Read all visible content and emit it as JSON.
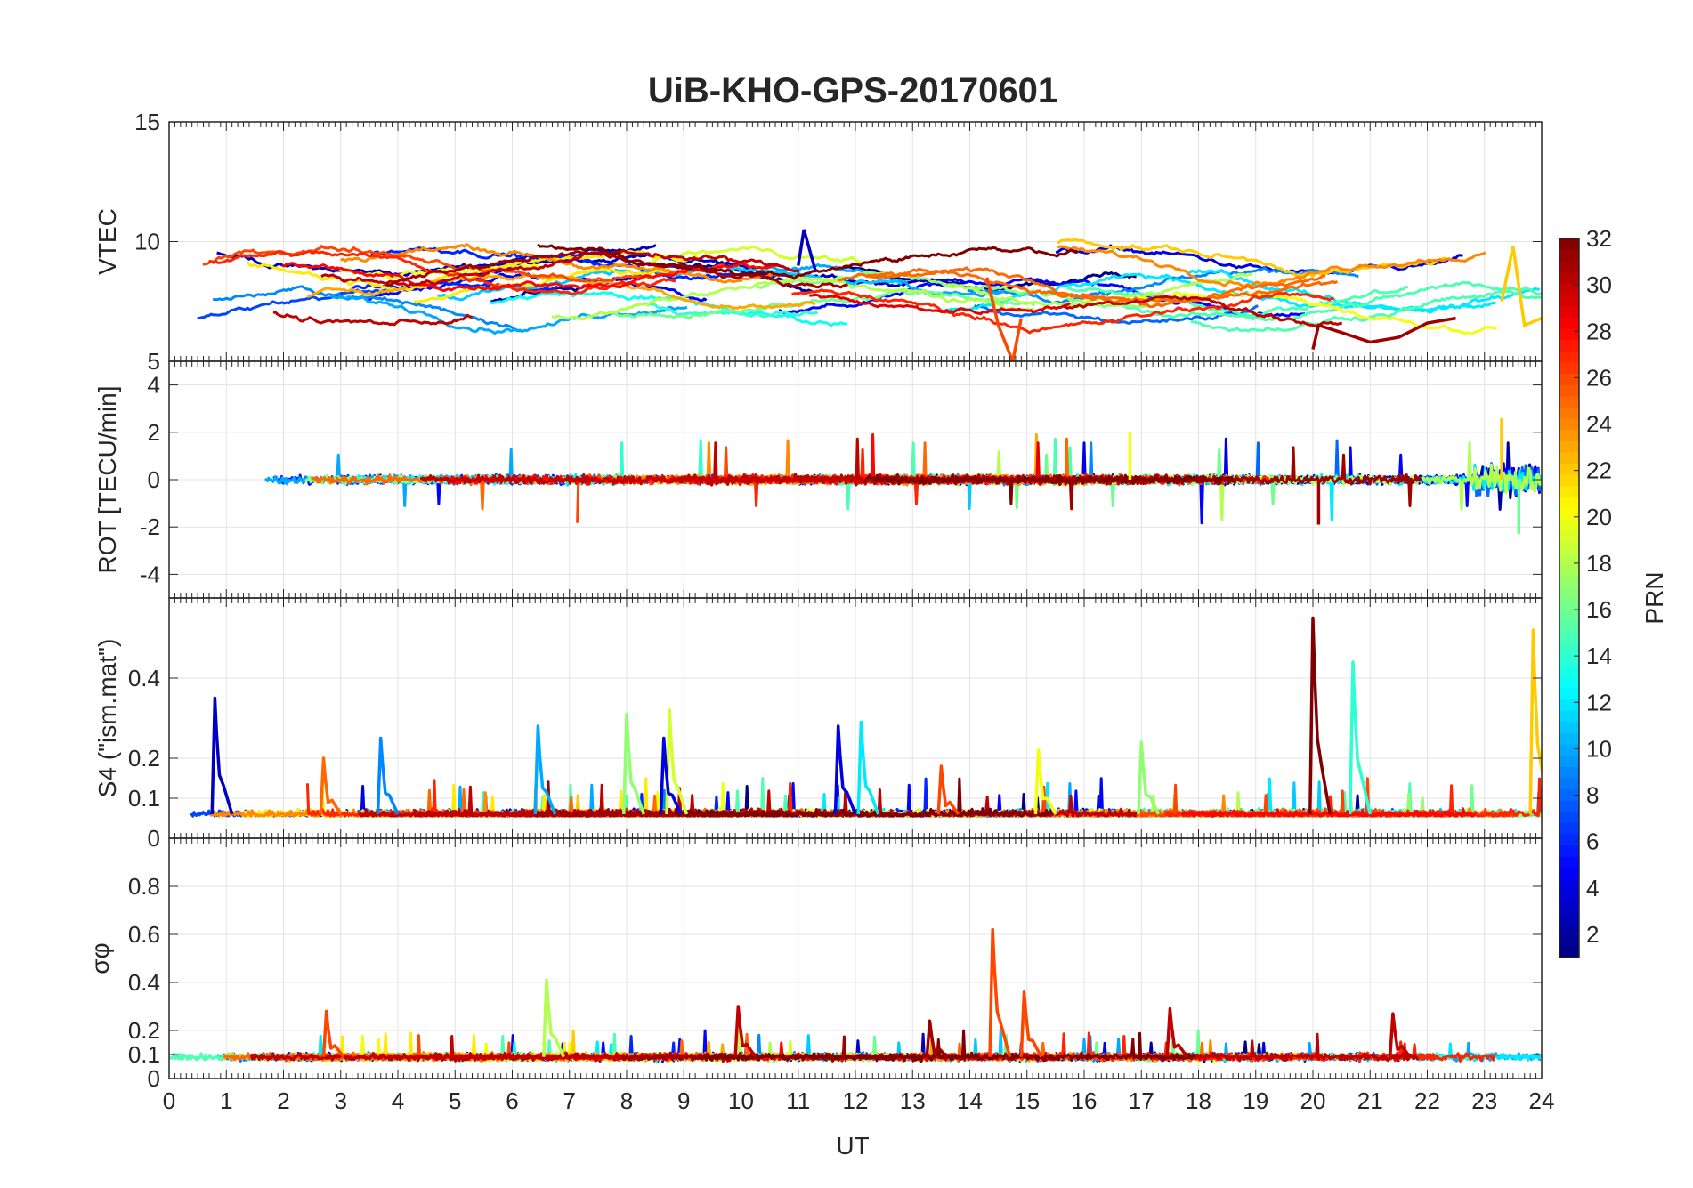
{
  "title": "UiB-KHO-GPS-20170601",
  "xlabel": "UT",
  "xlim": [
    0,
    24
  ],
  "xticks": [
    0,
    1,
    2,
    3,
    4,
    5,
    6,
    7,
    8,
    9,
    10,
    11,
    12,
    13,
    14,
    15,
    16,
    17,
    18,
    19,
    20,
    21,
    22,
    23,
    24
  ],
  "colorbar": {
    "label": "PRN",
    "range": [
      1,
      32
    ],
    "ticks": [
      2,
      4,
      6,
      8,
      10,
      12,
      14,
      16,
      18,
      20,
      22,
      24,
      26,
      28,
      30,
      32
    ],
    "colormap": "jet"
  },
  "chart_data": [
    {
      "type": "line",
      "ylabel": "VTEC",
      "ylim": [
        5,
        15
      ],
      "yticks": [
        5,
        10,
        15
      ],
      "grid": true,
      "series_hint": "32 PRN traces, colored by PRN",
      "features": [
        {
          "prn": 26,
          "x": [
            14.3,
            14.5,
            14.75,
            14.9
          ],
          "y": [
            8.5,
            6.5,
            5.0,
            6.8
          ]
        },
        {
          "prn": 31,
          "x": [
            20.0,
            20.1,
            20.5,
            21.0,
            21.5,
            22.0,
            22.5
          ],
          "y": [
            5.5,
            6.5,
            6.2,
            5.8,
            6.0,
            6.6,
            6.8
          ]
        },
        {
          "prn": 3,
          "x": [
            11.0,
            11.1,
            11.3
          ],
          "y": [
            9.0,
            10.5,
            8.8
          ]
        },
        {
          "prn": 22,
          "x": [
            23.3,
            23.5,
            23.7,
            24.0
          ],
          "y": [
            7.5,
            9.8,
            6.5,
            6.8
          ]
        }
      ]
    },
    {
      "type": "line",
      "ylabel": "ROT [TECU/min]",
      "ylim": [
        -5,
        5
      ],
      "yticks": [
        -4,
        -2,
        0,
        2,
        4
      ],
      "grid": true,
      "series_hint": "ROT fluctuations around 0, larger near 23-24 UT",
      "features": [
        {
          "prn": 22,
          "x": 23.3,
          "y": 2.6
        },
        {
          "prn": 16,
          "x": 23.6,
          "y": -2.3
        },
        {
          "prn": 31,
          "x": 20.1,
          "y": -1.9
        },
        {
          "prn": 20,
          "x": 16.8,
          "y": 2.0
        }
      ]
    },
    {
      "type": "line",
      "ylabel": "S4 (\"ism.mat\")",
      "ylim": [
        0,
        0.6
      ],
      "yticks": [
        0,
        0.1,
        0.2,
        0.4
      ],
      "grid": true,
      "spikes": [
        {
          "prn": 3,
          "x": 0.8,
          "y": 0.35
        },
        {
          "prn": 9,
          "x": 3.7,
          "y": 0.25
        },
        {
          "prn": 25,
          "x": 2.7,
          "y": 0.2
        },
        {
          "prn": 10,
          "x": 6.45,
          "y": 0.28
        },
        {
          "prn": 17,
          "x": 8.0,
          "y": 0.31
        },
        {
          "prn": 19,
          "x": 8.75,
          "y": 0.32
        },
        {
          "prn": 4,
          "x": 8.65,
          "y": 0.25
        },
        {
          "prn": 4,
          "x": 11.7,
          "y": 0.28
        },
        {
          "prn": 12,
          "x": 12.1,
          "y": 0.29
        },
        {
          "prn": 26,
          "x": 13.5,
          "y": 0.18
        },
        {
          "prn": 20,
          "x": 15.2,
          "y": 0.22
        },
        {
          "prn": 17,
          "x": 17.0,
          "y": 0.24
        },
        {
          "prn": 32,
          "x": 20.0,
          "y": 0.55
        },
        {
          "prn": 14,
          "x": 20.7,
          "y": 0.44
        },
        {
          "prn": 22,
          "x": 23.85,
          "y": 0.52
        }
      ]
    },
    {
      "type": "line",
      "ylabel": "σφ",
      "ylim": [
        0,
        1
      ],
      "yticks": [
        0,
        0.1,
        0.2,
        0.4,
        0.6,
        0.8
      ],
      "grid": true,
      "spikes": [
        {
          "prn": 26,
          "x": 2.75,
          "y": 0.28
        },
        {
          "prn": 18,
          "x": 6.6,
          "y": 0.41
        },
        {
          "prn": 30,
          "x": 9.95,
          "y": 0.3
        },
        {
          "prn": 31,
          "x": 13.3,
          "y": 0.24
        },
        {
          "prn": 26,
          "x": 14.4,
          "y": 0.62
        },
        {
          "prn": 26,
          "x": 14.95,
          "y": 0.36
        },
        {
          "prn": 30,
          "x": 17.5,
          "y": 0.29
        },
        {
          "prn": 30,
          "x": 21.4,
          "y": 0.27
        }
      ]
    }
  ]
}
